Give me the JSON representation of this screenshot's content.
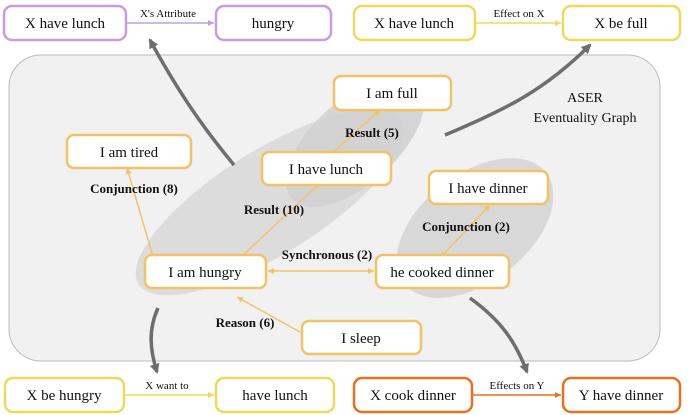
{
  "colors": {
    "orange_light": "#F5C167",
    "orange_dark": "#E8711F",
    "purple": "#C79BE6",
    "yellow": "#F2D85A",
    "gray_arrow": "#6E6E6E",
    "region_gray": "#D6D6D6",
    "container_fill": "#F1F1F1",
    "container_stroke": "#BBBBBB"
  },
  "aser": {
    "line1": "ASER",
    "line2": "Eventuality Graph"
  },
  "graph": {
    "nodes": {
      "i_am_full": "I am full",
      "i_am_tired": "I am tired",
      "i_have_lunch": "I have lunch",
      "i_have_dinner": "I have dinner",
      "i_am_hungry": "I am hungry",
      "he_cooked_dinner": "he cooked dinner",
      "i_sleep": "I sleep"
    },
    "edges": {
      "result_5": "Result (5)",
      "conjunction_8": "Conjunction (8)",
      "result_10": "Result (10)",
      "conjunction_2": "Conjunction (2)",
      "synchronous_2": "Synchronous (2)",
      "reason_6": "Reason (6)"
    }
  },
  "knowledge": {
    "top_left": {
      "head": "X have lunch",
      "relation": "X's Attribute",
      "tail": "hungry"
    },
    "top_right": {
      "head": "X have lunch",
      "relation": "Effect on X",
      "tail": "X be full"
    },
    "bottom_left": {
      "head": "X be hungry",
      "relation": "X want to",
      "tail": "have lunch"
    },
    "bottom_right": {
      "head": "X cook dinner",
      "relation": "Effects on Y",
      "tail": "Y have dinner"
    }
  }
}
